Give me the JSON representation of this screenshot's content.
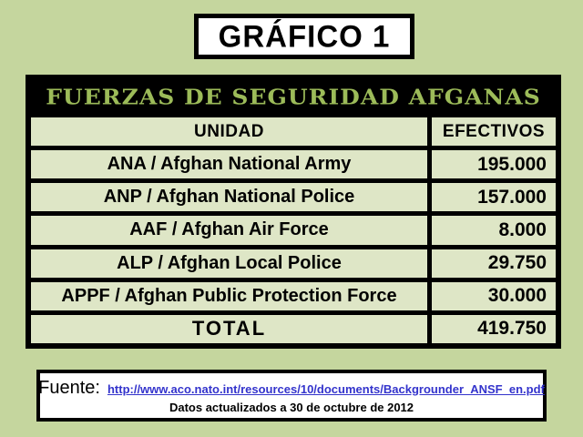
{
  "title_box": {
    "label": "GRÁFICO 1"
  },
  "table": {
    "title": "FUERZAS DE SEGURIDAD AFGANAS",
    "columns": {
      "unit": "UNIDAD",
      "strength": "EFECTIVOS"
    },
    "rows": [
      {
        "unidad": "ANA / Afghan National Army",
        "efectivos": "195.000"
      },
      {
        "unidad": "ANP / Afghan National Police",
        "efectivos": "157.000"
      },
      {
        "unidad": "AAF / Afghan Air Force",
        "efectivos": "8.000"
      },
      {
        "unidad": "ALP / Afghan Local Police",
        "efectivos": "29.750"
      },
      {
        "unidad": "APPF / Afghan Public Protection Force",
        "efectivos": "30.000"
      }
    ],
    "total": {
      "label": "TOTAL",
      "value": "419.750"
    }
  },
  "source_box": {
    "label": "Fuente:",
    "url": "http://www.aco.nato.int/resources/10/documents/Backgrounder_ANSF_en.pdf",
    "note": "Datos actualizados a 30 de octubre de 2012"
  },
  "colors": {
    "page_background": "#c5d69e",
    "cell_background": "#dee6c6",
    "band_background": "#000000",
    "band_text": "#9cbb59",
    "link": "#3333cc",
    "box_background": "#ffffff",
    "border": "#000000"
  },
  "chart_data": {
    "type": "table",
    "title": "FUERZAS DE SEGURIDAD AFGANAS",
    "columns": [
      "UNIDAD",
      "EFECTIVOS"
    ],
    "rows": [
      [
        "ANA / Afghan National Army",
        195000
      ],
      [
        "ANP / Afghan National Police",
        157000
      ],
      [
        "AAF / Afghan Air Force",
        8000
      ],
      [
        "ALP / Afghan Local Police",
        29750
      ],
      [
        "APPF / Afghan Public Protection Force",
        30000
      ]
    ],
    "total": [
      "TOTAL",
      419750
    ],
    "number_format": "thousands separated by dot (es-ES)"
  }
}
